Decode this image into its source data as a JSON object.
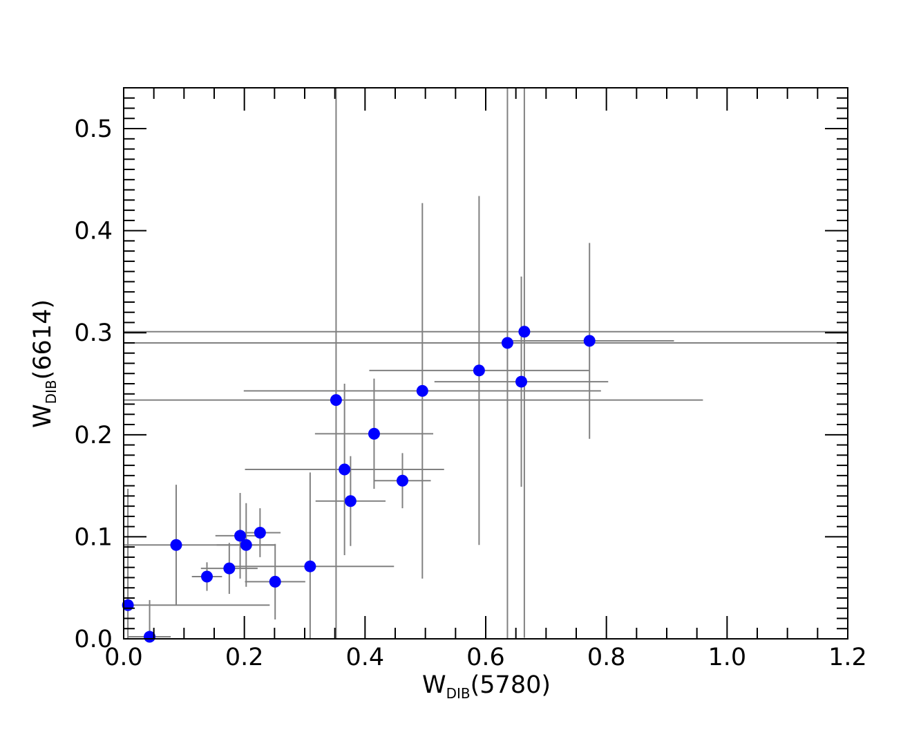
{
  "chart_data": {
    "type": "scatter",
    "xlabel": {
      "main": "W",
      "sub": "DIB",
      "tail": "(5780)"
    },
    "ylabel": {
      "main": "W",
      "sub": "DIB",
      "tail": "(6614)"
    },
    "xlim": [
      0.0,
      1.2
    ],
    "ylim": [
      0.0,
      0.54
    ],
    "x_ticks": [
      0.0,
      0.2,
      0.4,
      0.6,
      0.8,
      1.0,
      1.2
    ],
    "x_tick_labels": [
      "0.0",
      "0.2",
      "0.4",
      "0.6",
      "0.8",
      "1.0",
      "1.2"
    ],
    "y_ticks": [
      0.0,
      0.1,
      0.2,
      0.3,
      0.4,
      0.5
    ],
    "y_tick_labels": [
      "0.0",
      "0.1",
      "0.2",
      "0.3",
      "0.4",
      "0.5"
    ],
    "grid": false,
    "marker_color": "#0000ff",
    "errorbar_color": "#808080",
    "points": [
      {
        "x": 0.007,
        "y": 0.033,
        "xerr": 0.235,
        "yerr": 0.114
      },
      {
        "x": 0.043,
        "y": 0.002,
        "xerr": 0.035,
        "yerr": 0.036
      },
      {
        "x": 0.087,
        "y": 0.092,
        "xerr": 0.165,
        "yerr": 0.059
      },
      {
        "x": 0.138,
        "y": 0.061,
        "xerr": 0.025,
        "yerr": 0.014
      },
      {
        "x": 0.175,
        "y": 0.069,
        "xerr": 0.047,
        "yerr": 0.025
      },
      {
        "x": 0.193,
        "y": 0.101,
        "xerr": 0.041,
        "yerr": 0.042
      },
      {
        "x": 0.203,
        "y": 0.092,
        "xerr": 0.049,
        "yerr": 0.041
      },
      {
        "x": 0.226,
        "y": 0.104,
        "xerr": 0.034,
        "yerr": 0.024
      },
      {
        "x": 0.251,
        "y": 0.056,
        "xerr": 0.05,
        "yerr": 0.037
      },
      {
        "x": 0.309,
        "y": 0.071,
        "xerr": 0.139,
        "yerr": 0.092
      },
      {
        "x": 0.352,
        "y": 0.234,
        "xerr": 0.608,
        "yerr": 0.32
      },
      {
        "x": 0.366,
        "y": 0.166,
        "xerr": 0.165,
        "yerr": 0.084
      },
      {
        "x": 0.376,
        "y": 0.135,
        "xerr": 0.058,
        "yerr": 0.044
      },
      {
        "x": 0.415,
        "y": 0.201,
        "xerr": 0.098,
        "yerr": 0.054
      },
      {
        "x": 0.462,
        "y": 0.155,
        "xerr": 0.047,
        "yerr": 0.027
      },
      {
        "x": 0.495,
        "y": 0.243,
        "xerr": 0.296,
        "yerr": 0.184
      },
      {
        "x": 0.589,
        "y": 0.263,
        "xerr": 0.182,
        "yerr": 0.171
      },
      {
        "x": 0.636,
        "y": 0.29,
        "xerr": 0.95,
        "yerr": 0.3
      },
      {
        "x": 0.659,
        "y": 0.252,
        "xerr": 0.144,
        "yerr": 0.103
      },
      {
        "x": 0.664,
        "y": 0.301,
        "xerr": 0.95,
        "yerr": 0.3
      },
      {
        "x": 0.772,
        "y": 0.292,
        "xerr": 0.14,
        "yerr": 0.096
      }
    ]
  }
}
